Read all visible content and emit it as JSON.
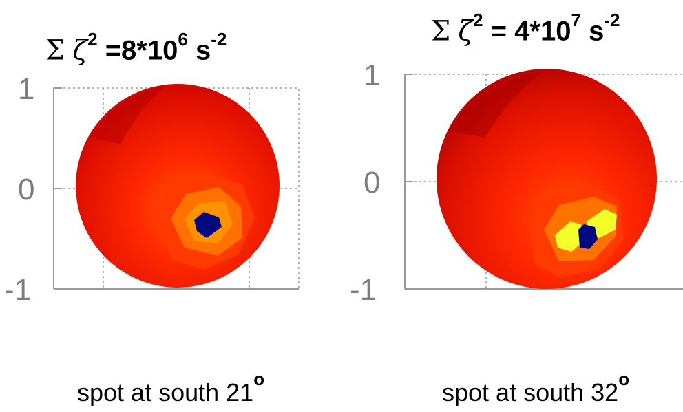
{
  "panels": [
    {
      "title": {
        "sum_symbol": "Σ",
        "variable": "ζ",
        "power": "2",
        "eq_and_base": "=8*10",
        "exp": "6",
        "unit": "s",
        "unit_exp": "-2"
      },
      "y_ticks": [
        "1",
        "0",
        "-1"
      ],
      "caption": {
        "text": "spot at south 21",
        "degree": "o"
      }
    },
    {
      "title": {
        "sum_symbol": "Σ",
        "variable": "ζ",
        "power": "2",
        "eq_and_base": "= 4*10",
        "exp": "7",
        "unit": "s",
        "unit_exp": "-2"
      },
      "y_ticks": [
        "1",
        "0",
        "-1"
      ],
      "caption": {
        "text": "spot at south 32",
        "degree": "o"
      }
    }
  ],
  "colors": {
    "sphere_dark": "#b00000",
    "sphere_mid": "#ff2000",
    "sphere_orange": "#ff7800",
    "spot_yellow": "#f0ff20",
    "spot_core": "#000a80",
    "axis_gray": "#999999"
  }
}
